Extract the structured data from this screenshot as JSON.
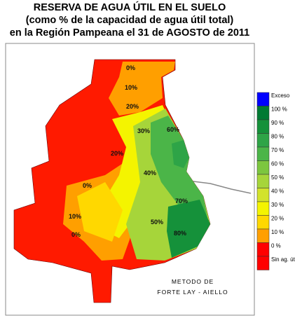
{
  "header": {
    "lines": [
      "RESERVA DE AGUA ÚTIL EN EL SUELO",
      "(como % de la capacidad de agua útil total)",
      "en la Región Pampeana el 31 de AGOSTO de 2011"
    ]
  },
  "legend": {
    "items": [
      {
        "label": "Exceso",
        "color": "#0000ff"
      },
      {
        "label": "100 %",
        "color": "#007a33"
      },
      {
        "label": "90 %",
        "color": "#15913a"
      },
      {
        "label": "80 %",
        "color": "#2ea447"
      },
      {
        "label": "70 %",
        "color": "#4bb548"
      },
      {
        "label": "60 %",
        "color": "#7cc63f"
      },
      {
        "label": "50 %",
        "color": "#a6d53a"
      },
      {
        "label": "40 %",
        "color": "#d2e32c"
      },
      {
        "label": "30 %",
        "color": "#f4f400"
      },
      {
        "label": "20 %",
        "color": "#ffd800"
      },
      {
        "label": "10 %",
        "color": "#ff9f00"
      },
      {
        "label": "0 %",
        "color": "#ff0000"
      },
      {
        "label": "Sin ag. útil",
        "color": "#ff0000"
      }
    ]
  },
  "map": {
    "contour_labels": [
      "0%",
      "10%",
      "20%",
      "30%",
      "60%",
      "40%",
      "20%",
      "0%",
      "10%",
      "0%",
      "50%",
      "80%",
      "70%"
    ]
  },
  "footer": {
    "lines": [
      "METODO DE",
      "FORTE LAY - AIELLO"
    ]
  }
}
